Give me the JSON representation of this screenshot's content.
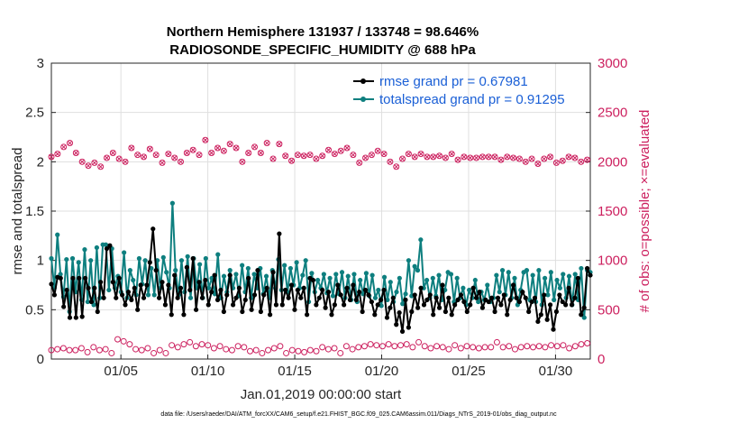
{
  "chart_data": {
    "type": "line",
    "title": "Northern Hemisphere 131937 / 133748 = 98.646%",
    "subtitle": "RADIOSONDE_SPECIFIC_HUMIDITY @ 688 hPa",
    "xlabel": "Jan.01,2019 00:00:00 start",
    "ylabel": "rmse and totalspread",
    "ylabel_right": "# of obs: o=possible; ×=evaluated",
    "footnote": "data file: /Users/raeder/DAI/ATM_forcXX/CAM6_setup/f.e21.FHIST_BGC.f09_025.CAM6assim.011/Diags_NTrS_2019-01/obs_diag_output.nc",
    "xlim": [
      1,
      32
    ],
    "ylim": [
      0,
      3
    ],
    "ylim_right": [
      0,
      3000
    ],
    "x_ticks": [
      5,
      10,
      15,
      20,
      25,
      30
    ],
    "x_tick_labels": [
      "01/05",
      "01/10",
      "01/15",
      "01/20",
      "01/25",
      "01/30"
    ],
    "y_ticks": [
      "0",
      "0.5",
      "1",
      "1.5",
      "2",
      "2.5",
      "3"
    ],
    "y_ticks_right": [
      "0",
      "500",
      "1000",
      "1500",
      "2000",
      "2500",
      "3000"
    ],
    "grid": true,
    "legend_position": "top-right",
    "colors": {
      "rmse": "#000000",
      "totalspread": "#0e7f7f",
      "obs": "#cc1f5e",
      "legend_text": "#1a5fd6"
    },
    "series": [
      {
        "name": "rmse grand pr = 0.67981",
        "axis": "left",
        "values": [
          0.76,
          0.65,
          0.83,
          0.82,
          0.53,
          0.7,
          0.42,
          0.82,
          0.42,
          0.82,
          0.43,
          0.82,
          0.72,
          0.58,
          0.72,
          0.48,
          0.78,
          0.62,
          1.12,
          1.15,
          0.78,
          0.62,
          0.82,
          0.65,
          0.55,
          0.68,
          0.6,
          0.72,
          0.5,
          0.75,
          0.62,
          0.75,
          0.98,
          1.32,
          0.9,
          0.62,
          0.78,
          0.55,
          0.75,
          0.45,
          0.85,
          0.62,
          0.72,
          0.45,
          0.93,
          0.7,
          1.02,
          0.5,
          0.78,
          0.62,
          0.8,
          0.55,
          0.68,
          0.85,
          0.6,
          0.7,
          0.48,
          0.65,
          0.85,
          0.55,
          0.62,
          0.72,
          0.48,
          0.6,
          0.82,
          0.5,
          0.65,
          0.9,
          0.48,
          0.65,
          0.72,
          0.45,
          0.88,
          0.55,
          1.27,
          0.55,
          0.7,
          0.62,
          0.75,
          0.5,
          0.7,
          0.62,
          0.72,
          0.45,
          0.82,
          0.8,
          0.55,
          0.62,
          0.7,
          0.52,
          0.68,
          0.45,
          0.55,
          0.75,
          0.65,
          0.55,
          0.72,
          0.6,
          0.75,
          0.6,
          0.68,
          0.48,
          0.7,
          0.65,
          0.58,
          0.45,
          0.55,
          0.6,
          0.7,
          0.42,
          0.52,
          0.62,
          0.35,
          0.47,
          0.28,
          0.6,
          0.32,
          0.48,
          0.65,
          0.52,
          0.72,
          0.55,
          0.6,
          0.65,
          0.45,
          0.62,
          0.52,
          0.75,
          0.48,
          0.62,
          0.45,
          0.55,
          0.6,
          0.65,
          0.58,
          0.48,
          0.55,
          0.72,
          0.62,
          0.68,
          0.52,
          0.6,
          0.58,
          0.62,
          0.48,
          0.62,
          0.55,
          0.65,
          0.45,
          0.6,
          0.75,
          0.62,
          0.58,
          0.68,
          0.62,
          0.48,
          0.58,
          0.62,
          0.38,
          0.45,
          0.65,
          0.4,
          0.55,
          0.3,
          0.48,
          0.65,
          0.58,
          0.55,
          0.72,
          0.55,
          0.62,
          0.82,
          0.45,
          0.52,
          0.92,
          0.85
        ]
      },
      {
        "name": "totalspread grand pr = 0.91295",
        "axis": "left",
        "values": [
          1.02,
          0.72,
          1.26,
          0.86,
          0.63,
          1.01,
          0.48,
          1.02,
          0.68,
          0.98,
          0.6,
          1.11,
          0.58,
          1.0,
          0.55,
          1.13,
          0.62,
          1.16,
          1.16,
          0.7,
          1.12,
          0.72,
          0.84,
          0.68,
          1.08,
          0.62,
          0.9,
          0.8,
          0.65,
          1.02,
          0.76,
          1.0,
          0.65,
          0.92,
          0.65,
          1.0,
          0.72,
          1.03,
          0.88,
          0.72,
          1.58,
          0.9,
          0.65,
          1.0,
          0.68,
          1.04,
          0.62,
          1.02,
          0.72,
          0.96,
          0.62,
          1.02,
          0.72,
          0.82,
          0.66,
          1.06,
          0.62,
          0.84,
          0.68,
          0.9,
          0.72,
          0.86,
          0.64,
          0.95,
          0.68,
          0.92,
          0.62,
          0.86,
          0.72,
          0.92,
          0.66,
          0.84,
          0.62,
          0.9,
          0.72,
          1.01,
          0.7,
          0.95,
          0.68,
          0.92,
          0.75,
          0.98,
          0.72,
          0.85,
          1.0,
          0.58,
          0.87,
          0.68,
          0.8,
          0.72,
          0.86,
          0.67,
          0.82,
          0.64,
          0.86,
          0.66,
          0.88,
          0.62,
          0.84,
          0.6,
          0.86,
          0.58,
          0.8,
          0.66,
          0.87,
          0.64,
          0.85,
          0.62,
          0.7,
          0.54,
          0.83,
          0.6,
          0.78,
          0.58,
          0.68,
          0.82,
          0.56,
          0.66,
          1.0,
          0.64,
          0.94,
          0.9,
          1.21,
          0.72,
          0.8,
          0.62,
          0.82,
          0.64,
          0.85,
          0.6,
          0.7,
          0.88,
          0.86,
          0.58,
          0.82,
          0.62,
          0.72,
          0.55,
          0.7,
          0.62,
          0.8,
          0.58,
          0.68,
          0.6,
          0.75,
          0.58,
          0.62,
          0.85,
          0.68,
          0.9,
          0.65,
          0.88,
          0.62,
          0.82,
          0.55,
          0.7,
          0.88,
          0.9,
          0.6,
          0.85,
          0.58,
          0.9,
          0.55,
          0.82,
          0.65,
          0.88,
          0.6,
          0.8,
          0.72,
          0.86,
          0.62,
          0.84,
          0.55,
          0.86,
          0.6,
          0.92,
          0.42,
          0.9,
          0.88
        ]
      },
      {
        "name": "obs possible",
        "axis": "right",
        "values": [
          2050,
          1990,
          2080,
          2000,
          2150,
          2060,
          2190,
          2060,
          2090,
          2010,
          2000,
          1920,
          1960,
          1840,
          1990,
          1850,
          1950,
          1800,
          2040,
          2050,
          2090,
          2140,
          2030,
          2110,
          2000,
          1920,
          2140,
          2050,
          2070,
          2000,
          2050,
          1940,
          2130,
          2080,
          2070,
          2060,
          1990,
          2020,
          2080,
          2160,
          2040,
          2070,
          2000,
          1900,
          2090,
          2050,
          2120,
          2050,
          2070,
          2010,
          2220,
          2020,
          2090,
          2030,
          2140,
          2060,
          2110,
          2050,
          2180,
          1980,
          2140,
          2060,
          2000,
          2120,
          2090,
          2050,
          2150,
          1990,
          2090,
          2080,
          2190,
          2140,
          2030,
          2090,
          2180,
          2120,
          2060,
          1960,
          2010,
          1990,
          2070,
          1990,
          2060,
          2000,
          2070,
          1920,
          2030,
          1990,
          2060,
          2000,
          2120,
          1990,
          2080,
          2040,
          2110,
          2030,
          2140,
          2000,
          2070,
          1990,
          1990,
          1880,
          2040,
          1950,
          2070,
          1980,
          2110,
          1910,
          2080,
          1950,
          2000,
          1830,
          1950,
          2040,
          2030,
          2000,
          2080,
          1990,
          2050,
          2000,
          2080,
          2050,
          2050,
          2060,
          2050,
          2040,
          2060,
          2060,
          2040,
          2060,
          2080,
          2050,
          2020,
          2040,
          2050,
          2050,
          2040,
          2040,
          2040,
          2030,
          2050,
          2050,
          2050,
          2040,
          2050,
          2040,
          2020,
          2040,
          2050,
          2020,
          2040,
          2010,
          2030,
          2050,
          2000,
          2040,
          2030,
          1930,
          1980,
          1980,
          2030,
          1950,
          2050,
          2060,
          1990,
          2040,
          2010,
          2080,
          2050,
          2050,
          2040,
          2030,
          2000,
          2050,
          2020,
          2000
        ],
        "marker": "o"
      },
      {
        "name": "obs evaluated",
        "axis": "right",
        "values": [
          2050,
          1990,
          2080,
          2000,
          2150,
          2060,
          2190,
          2060,
          2090,
          2010,
          2000,
          1920,
          1960,
          1840,
          1990,
          1850,
          1950,
          1800,
          2040,
          2050,
          2090,
          2140,
          2030,
          2110,
          2000,
          1920,
          2140,
          2050,
          2070,
          2000,
          2050,
          1940,
          2130,
          2080,
          2070,
          2060,
          1990,
          2020,
          2080,
          2160,
          2040,
          2070,
          2000,
          1900,
          2090,
          2050,
          2120,
          2050,
          2070,
          2010,
          2220,
          2020,
          2090,
          2030,
          2140,
          2060,
          2110,
          2050,
          2180,
          1980,
          2140,
          2060,
          2000,
          2120,
          2090,
          2050,
          2150,
          1990,
          2090,
          2080,
          2190,
          2140,
          2030,
          2090,
          2180,
          2120,
          2060,
          1960,
          2010,
          1990,
          2070,
          1990,
          2060,
          2000,
          2070,
          1920,
          2030,
          1990,
          2060,
          2000,
          2120,
          1990,
          2080,
          2040,
          2110,
          2030,
          2140,
          2000,
          2070,
          1990,
          1990,
          1880,
          2040,
          1950,
          2070,
          1980,
          2110,
          1910,
          2080,
          1950,
          2000,
          1830,
          1950,
          2040,
          2030,
          2000,
          2080,
          1990,
          2050,
          2000,
          2080,
          2050,
          2050,
          2060,
          2050,
          2040,
          2060,
          2060,
          2040,
          2060,
          2080,
          2050,
          2020,
          2040,
          2050,
          2050,
          2040,
          2040,
          2040,
          2030,
          2050,
          2050,
          2050,
          2040,
          2050,
          2040,
          2020,
          2040,
          2050,
          2020,
          2040,
          2010,
          2030,
          2050,
          2000,
          2040,
          2030,
          1930,
          1980,
          1980,
          2030,
          1950,
          2050,
          2060,
          1990,
          2040,
          2010,
          2080,
          2050,
          2050,
          2040,
          2030,
          2000,
          2050,
          2020,
          2000
        ],
        "marker": "x"
      },
      {
        "name": "obs possible low",
        "axis": "right",
        "values": [
          90,
          70,
          100,
          60,
          110,
          80,
          90,
          70,
          90,
          60,
          110,
          80,
          70,
          90,
          120,
          60,
          90,
          70,
          100,
          80,
          60,
          90,
          200,
          140,
          180,
          130,
          150,
          70,
          100,
          60,
          90,
          70,
          110,
          80,
          60,
          100,
          90,
          120,
          60,
          180,
          140,
          200,
          120,
          160,
          150,
          100,
          170,
          90,
          130,
          100,
          150,
          120,
          140,
          100,
          110,
          90,
          130,
          80,
          100,
          110,
          90,
          120,
          130,
          100,
          120,
          90,
          80,
          110,
          90,
          130,
          60,
          120,
          90,
          70,
          110,
          90,
          130,
          80,
          60,
          100,
          90,
          120,
          80,
          110,
          70,
          100,
          90,
          110,
          80,
          70,
          120,
          90,
          100,
          80,
          110,
          90,
          60,
          110,
          130,
          80,
          100,
          140,
          120,
          110,
          130,
          140,
          150,
          100,
          140,
          120,
          130,
          110,
          150,
          170,
          130,
          110,
          140,
          130,
          150,
          110,
          120,
          130,
          170,
          140,
          130,
          120,
          110,
          150,
          130,
          140,
          120,
          110,
          100,
          130,
          140,
          120,
          110,
          100,
          130,
          110,
          120,
          170,
          110,
          100,
          120,
          130,
          120,
          150,
          170,
          140,
          120,
          110,
          130,
          120,
          100,
          140,
          120,
          110,
          130,
          150,
          120,
          110,
          130,
          110,
          120,
          150,
          140,
          110,
          130,
          160,
          140,
          120,
          110,
          140,
          130,
          180,
          150,
          170,
          160,
          170
        ]
      }
    ]
  }
}
